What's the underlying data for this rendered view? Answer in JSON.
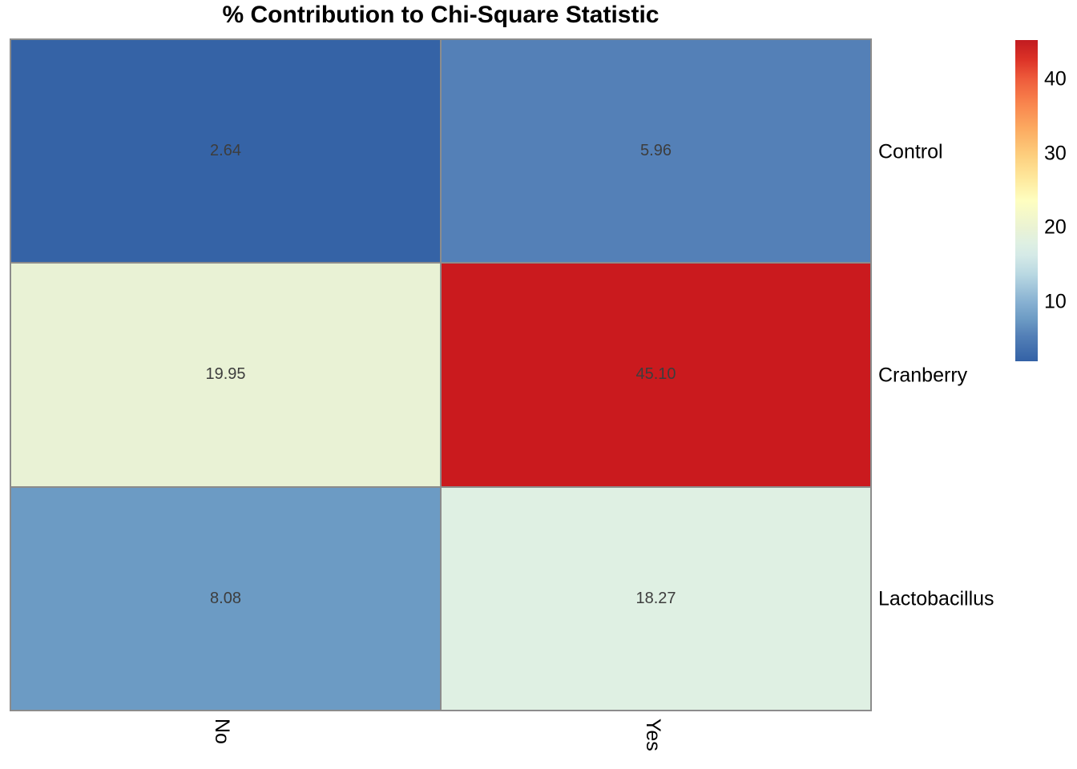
{
  "title": "% Contribution to Chi-Square Statistic",
  "chart_data": {
    "type": "heatmap",
    "title": "% Contribution to Chi-Square Statistic",
    "x_axis_categories": [
      "No",
      "Yes"
    ],
    "y_axis_categories": [
      "Control",
      "Cranberry",
      "Lactobacillus"
    ],
    "series": [
      {
        "name": "Control",
        "values": [
          2.64,
          5.96
        ]
      },
      {
        "name": "Cranberry",
        "values": [
          19.95,
          45.1
        ]
      },
      {
        "name": "Lactobacillus",
        "values": [
          8.08,
          18.27
        ]
      }
    ],
    "cells": [
      {
        "row": "Control",
        "col": "No",
        "label": "2.64",
        "color": "#3563A6"
      },
      {
        "row": "Control",
        "col": "Yes",
        "label": "5.96",
        "color": "#5480B7"
      },
      {
        "row": "Cranberry",
        "col": "No",
        "label": "19.95",
        "color": "#E9F2D5"
      },
      {
        "row": "Cranberry",
        "col": "Yes",
        "label": "45.10",
        "color": "#CA1A1E"
      },
      {
        "row": "Lactobacillus",
        "col": "No",
        "label": "8.08",
        "color": "#6C9BC4"
      },
      {
        "row": "Lactobacillus",
        "col": "Yes",
        "label": "18.27",
        "color": "#DFF0E3"
      }
    ],
    "colorbar": {
      "ticks": [
        "40",
        "30",
        "20",
        "10"
      ],
      "min_value": 2.64,
      "max_value": 45.1,
      "colormap": "RdYlBu reversed (blue=low, red=high)",
      "gradient_stops": [
        "#3462A6 0%",
        "#5480B7 8%",
        "#6C9BC4 13%",
        "#85AFD1 18%",
        "#B9D8E2 27%",
        "#D5EAE7 33%",
        "#DFF0E2 37%",
        "#E9F2D5 41%",
        "#FEFEC0 50%",
        "#FEE89C 57%",
        "#FDCF7E 64%",
        "#FCAC62 72%",
        "#F9864E 80%",
        "#EE5B3B 88%",
        "#DC3227 94%",
        "#C11B20 100%"
      ]
    },
    "layout": {
      "legend_position": "right",
      "grid": "on",
      "x_tick_rotation_deg": 90
    },
    "colors": {
      "grid_line": "#8C8C8C",
      "value_text": "#3D3D3D",
      "background": "#FFFFFF"
    }
  }
}
